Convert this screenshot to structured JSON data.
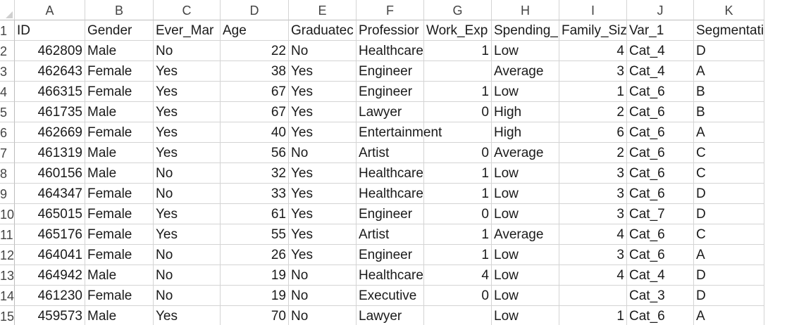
{
  "columns": [
    "A",
    "B",
    "C",
    "D",
    "E",
    "F",
    "G",
    "H",
    "I",
    "J",
    "K"
  ],
  "rows": [
    {
      "num": "1",
      "cells": [
        "ID",
        "Gender",
        "Ever_Mar",
        "Age",
        "Graduatec",
        "Professior",
        "Work_Exp",
        "Spending_",
        "Family_Siz",
        "Var_1",
        "Segmentation"
      ]
    },
    {
      "num": "2",
      "cells": [
        "462809",
        "Male",
        "No",
        "22",
        "No",
        "Healthcare",
        "1",
        "Low",
        "4",
        "Cat_4",
        "D"
      ]
    },
    {
      "num": "3",
      "cells": [
        "462643",
        "Female",
        "Yes",
        "38",
        "Yes",
        "Engineer",
        "",
        "Average",
        "3",
        "Cat_4",
        "A"
      ]
    },
    {
      "num": "4",
      "cells": [
        "466315",
        "Female",
        "Yes",
        "67",
        "Yes",
        "Engineer",
        "1",
        "Low",
        "1",
        "Cat_6",
        "B"
      ]
    },
    {
      "num": "5",
      "cells": [
        "461735",
        "Male",
        "Yes",
        "67",
        "Yes",
        "Lawyer",
        "0",
        "High",
        "2",
        "Cat_6",
        "B"
      ]
    },
    {
      "num": "6",
      "cells": [
        "462669",
        "Female",
        "Yes",
        "40",
        "Yes",
        "Entertainment",
        "",
        "High",
        "6",
        "Cat_6",
        "A"
      ]
    },
    {
      "num": "7",
      "cells": [
        "461319",
        "Male",
        "Yes",
        "56",
        "No",
        "Artist",
        "0",
        "Average",
        "2",
        "Cat_6",
        "C"
      ]
    },
    {
      "num": "8",
      "cells": [
        "460156",
        "Male",
        "No",
        "32",
        "Yes",
        "Healthcare",
        "1",
        "Low",
        "3",
        "Cat_6",
        "C"
      ]
    },
    {
      "num": "9",
      "cells": [
        "464347",
        "Female",
        "No",
        "33",
        "Yes",
        "Healthcare",
        "1",
        "Low",
        "3",
        "Cat_6",
        "D"
      ]
    },
    {
      "num": "10",
      "cells": [
        "465015",
        "Female",
        "Yes",
        "61",
        "Yes",
        "Engineer",
        "0",
        "Low",
        "3",
        "Cat_7",
        "D"
      ]
    },
    {
      "num": "11",
      "cells": [
        "465176",
        "Female",
        "Yes",
        "55",
        "Yes",
        "Artist",
        "1",
        "Average",
        "4",
        "Cat_6",
        "C"
      ]
    },
    {
      "num": "12",
      "cells": [
        "464041",
        "Female",
        "No",
        "26",
        "Yes",
        "Engineer",
        "1",
        "Low",
        "3",
        "Cat_6",
        "A"
      ]
    },
    {
      "num": "13",
      "cells": [
        "464942",
        "Male",
        "No",
        "19",
        "No",
        "Healthcare",
        "4",
        "Low",
        "4",
        "Cat_4",
        "D"
      ]
    },
    {
      "num": "14",
      "cells": [
        "461230",
        "Female",
        "No",
        "19",
        "No",
        "Executive",
        "0",
        "Low",
        "",
        "Cat_3",
        "D"
      ]
    },
    {
      "num": "15",
      "cells": [
        "459573",
        "Male",
        "Yes",
        "70",
        "No",
        "Lawyer",
        "",
        "Low",
        "1",
        "Cat_6",
        "A"
      ]
    }
  ]
}
